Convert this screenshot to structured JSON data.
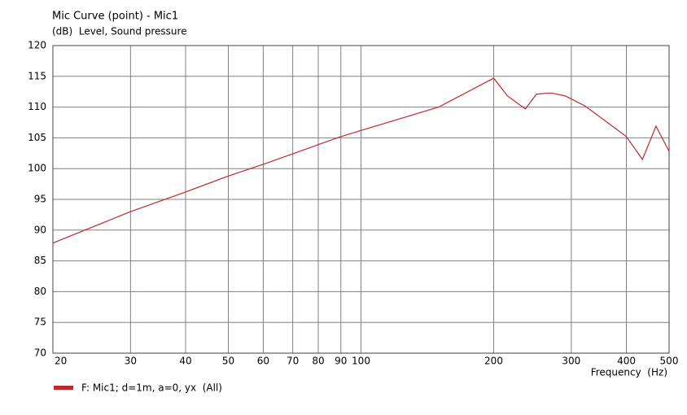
{
  "chart_data": {
    "type": "line",
    "title": "Mic Curve (point) - Mic1",
    "subtitle": "(dB)  Level, Sound pressure",
    "x_label": "Frequency  (Hz)",
    "x": [
      20,
      30,
      40,
      50,
      60,
      70,
      80,
      90,
      100,
      150,
      200,
      215,
      236,
      250,
      270,
      291,
      322,
      353,
      400,
      435,
      467,
      500
    ],
    "series": [
      {
        "name": "F: Mic1; d=1m, a=0, yx  (All)",
        "color": "#c0282d",
        "values": [
          87.9,
          93.0,
          96.2,
          98.8,
          100.7,
          102.4,
          103.9,
          105.2,
          106.2,
          110.0,
          114.7,
          111.8,
          109.7,
          112.1,
          112.3,
          111.8,
          110.2,
          108.1,
          105.2,
          101.5,
          106.9,
          102.8
        ]
      }
    ],
    "xlim": [
      20,
      500
    ],
    "ylim": [
      70,
      120
    ],
    "xticks": [
      20,
      30,
      40,
      50,
      60,
      70,
      80,
      90,
      100,
      200,
      300,
      400,
      500
    ],
    "yticks": [
      70,
      75,
      80,
      85,
      90,
      95,
      100,
      105,
      110,
      115,
      120
    ],
    "log_x": true,
    "grid": true
  }
}
